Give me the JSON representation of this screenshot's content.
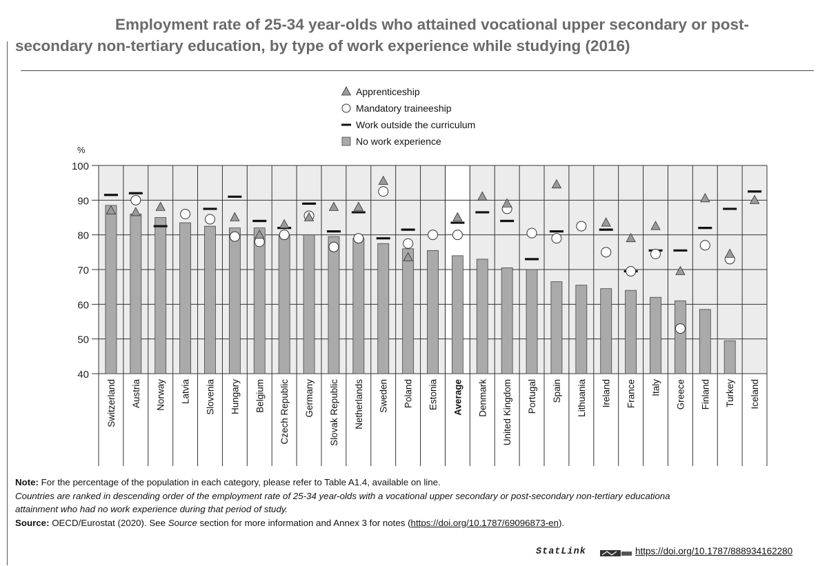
{
  "title": {
    "line1": "Employment rate of 25-34 year-olds who attained vocational upper secondary or post-",
    "line2": "secondary non-tertiary education, by type of work experience while studying (2016)"
  },
  "chart_data": {
    "type": "bar",
    "ylabel": "%",
    "ylim": [
      40,
      100
    ],
    "yticks": [
      40,
      50,
      60,
      70,
      80,
      90,
      100
    ],
    "grid": true,
    "legend_position": "top-center",
    "categories": [
      "Switzerland",
      "Austria",
      "Norway",
      "Latvia",
      "Slovenia",
      "Hungary",
      "Belgium",
      "Czech Republic",
      "Germany",
      "Slovak Republic",
      "Netherlands",
      "Sweden",
      "Poland",
      "Estonia",
      "Average",
      "Denmark",
      "United Kingdom",
      "Portugal",
      "Spain",
      "Lithuania",
      "Ireland",
      "France",
      "Italy",
      "Greece",
      "Finland",
      "Turkey",
      "Iceland"
    ],
    "highlight_category": "Average",
    "series": [
      {
        "name": "Apprenticeship",
        "marker": "triangle",
        "values": [
          87,
          86.5,
          88,
          null,
          null,
          85,
          80,
          83,
          85,
          88,
          88,
          95.5,
          73.5,
          null,
          85,
          91,
          89,
          null,
          94.5,
          null,
          83.5,
          79,
          82.5,
          69.5,
          90.5,
          74.5,
          90
        ]
      },
      {
        "name": "Mandatory traineeship",
        "marker": "circle",
        "values": [
          null,
          90,
          null,
          86,
          84.5,
          79.5,
          78,
          80,
          85.5,
          76.5,
          79,
          92.5,
          77.5,
          80,
          80,
          null,
          87.5,
          80.5,
          79,
          82.5,
          75,
          69.5,
          74.5,
          53,
          77,
          73,
          null
        ]
      },
      {
        "name": "Work outside the curriculum",
        "marker": "dash",
        "values": [
          91.5,
          92,
          82.5,
          null,
          87.5,
          91,
          84,
          82,
          89,
          81,
          86.5,
          79,
          81.5,
          null,
          83.5,
          86.5,
          84,
          73,
          81,
          null,
          81.5,
          69.5,
          75.5,
          75.5,
          82,
          87.5,
          92.5
        ]
      },
      {
        "name": "No work experience",
        "marker": "bar",
        "values": [
          88.5,
          86,
          85,
          83.5,
          82.5,
          82,
          82,
          80,
          80,
          79.5,
          79,
          77.5,
          76,
          75.5,
          74,
          73,
          70.5,
          70,
          66.5,
          65.5,
          64.5,
          64,
          62,
          61,
          58.5,
          49.5,
          null
        ]
      }
    ]
  },
  "colors": {
    "bar_fill": "#aaaaaa",
    "bar_stroke": "#444444",
    "triangle_fill": "#9a9a9a",
    "highlight": "#ffffff",
    "plot_bg": "#ececec",
    "title": "#6a6a6a"
  },
  "notes": {
    "note_label": "Note:",
    "note_text": " For the percentage of the population in each category, please refer to Table A1.4, available on line.",
    "italic_line1": "Countries are ranked in descending order of the employment rate of 25-34 year-olds with a vocational upper secondary or post-secondary non-tertiary educationa",
    "italic_line2": "attainment who had no work experience during that period of study.",
    "source_label": "Source:",
    "source_text_1": " OECD/Eurostat (2020). See ",
    "source_italic": "Source",
    "source_text_2": " section for more information and Annex 3 for notes (",
    "source_url": "https://doi.org/10.1787/69096873-en",
    "source_text_3": ")."
  },
  "statlink": {
    "label": "StatLink",
    "url": "https://doi.org/10.1787/888934162280"
  }
}
